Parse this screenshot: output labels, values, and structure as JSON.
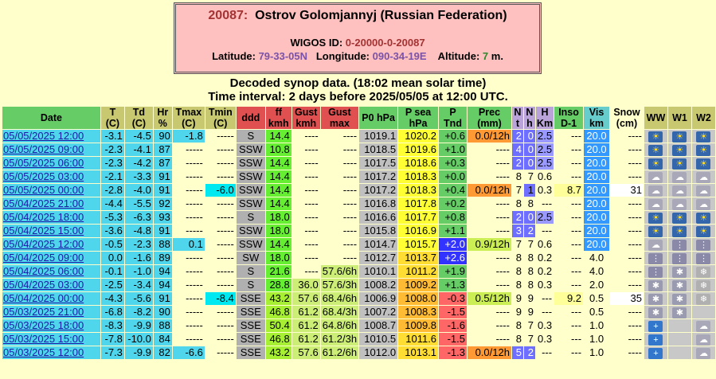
{
  "station": {
    "id": "20087:",
    "name": "Ostrov Golomjannyj (Russian Federation)",
    "wigos_label": "WIGOS ID:",
    "wigos_id": "0-20000-0-20087",
    "lat_label": "Latitude:",
    "latitude": "79-33-05N",
    "lon_label": "Longitude:",
    "longitude": "090-34-19E",
    "alt_label": "Altitude:",
    "altitude": "7",
    "alt_unit": "m."
  },
  "heading1": "Decoded synop data. (18:02 mean solar time)",
  "heading2": "Time interval: 2 days before 2025/05/05 at 12:00 UTC.",
  "columns": [
    {
      "label": "Date",
      "bg": "#66cc66"
    },
    {
      "label": "T (C)",
      "bg": "#c8c870"
    },
    {
      "label": "Td (C)",
      "bg": "#c8c870"
    },
    {
      "label": "Hr %",
      "bg": "#c8c870"
    },
    {
      "label": "Tmax (C)",
      "bg": "#c8c870"
    },
    {
      "label": "Tmin (C)",
      "bg": "#c8c870"
    },
    {
      "label": "ddd",
      "bg": "#e05050"
    },
    {
      "label": "ff kmh",
      "bg": "#e05050"
    },
    {
      "label": "Gust kmh",
      "bg": "#e05050"
    },
    {
      "label": "Gust max",
      "bg": "#e05050"
    },
    {
      "label": "P0 hPa",
      "bg": "#66cc66"
    },
    {
      "label": "P sea hPa",
      "bg": "#66cc66"
    },
    {
      "label": "P Tnd",
      "bg": "#66cc66"
    },
    {
      "label": "Prec (mm)",
      "bg": "#66cc66"
    },
    {
      "label": "N t",
      "bg": "#b9a3d9"
    },
    {
      "label": "N h",
      "bg": "#b9a3d9"
    },
    {
      "label": "H Km",
      "bg": "#b9a3d9"
    },
    {
      "label": "Inso D-1",
      "bg": "#66cc66"
    },
    {
      "label": "Vis km",
      "bg": "#66cccc"
    },
    {
      "label": "Snow (cm)",
      "bg": "#ffffcc"
    },
    {
      "label": "WW",
      "bg": "#c8c870"
    },
    {
      "label": "W1",
      "bg": "#c8c870"
    },
    {
      "label": "W2",
      "bg": "#c8c870"
    }
  ],
  "colors": {
    "date_bg": "#4fd6ec",
    "temp_bg": "#4fd6ec",
    "tmax_bg": "#4fd6ec",
    "tmin_bg": "#00e8f0",
    "ddd_bg": "#b0b0b0",
    "ff_bg": "#66ee33",
    "ff_bg_strong": "#a6ef33",
    "gust_bg": "#ccee77",
    "gustmax_bg": "#ccee77",
    "p0_bg": "#c0c0c0",
    "psea_high": "#ffff33",
    "psea_mid": "#ffdd33",
    "psea_low": "#ffbb33",
    "tnd_pos": "#66cc66",
    "tnd_neg": "#ff6666",
    "tnd_big": "#3333ff",
    "prec_bg": "#ff9933",
    "prec_light": "#ccee55",
    "cloud_bg": "#6f6fff",
    "cloud_light": "#a0a0ff",
    "h_bg": "#9999ff",
    "inso_bg": "#ffff99",
    "vis_bg": "#3399ff",
    "snow_bg": "#ffffff",
    "icon_sun": "#3366aa",
    "icon_cloud": "#9999aa",
    "icon_snow": "#8899bb",
    "icon_blue": "#3377cc",
    "icon_gray": "#777777"
  },
  "rows": [
    {
      "date": "05/05/2025 12:00",
      "t": "-3.1",
      "td": "-4.5",
      "hr": "90",
      "tmax": "-1.8",
      "tmin": "-----",
      "ddd": "S",
      "ff": "14.4",
      "gust": "----",
      "gustmax": "----",
      "p0": "1019.1",
      "psea": "1020.2",
      "tnd": "+0.6",
      "prec": "0.0/12h",
      "nt": "2",
      "nh": "0",
      "h": "2.5",
      "inso": "---",
      "vis": "20.0",
      "snow": "----",
      "ww": "icon_sun",
      "w1": "icon_sun",
      "w2": "icon_sun"
    },
    {
      "date": "05/05/2025 09:00",
      "t": "-2.3",
      "td": "-4.1",
      "hr": "87",
      "tmax": "-----",
      "tmin": "-----",
      "ddd": "SSW",
      "ff": "10.8",
      "gust": "----",
      "gustmax": "----",
      "p0": "1018.5",
      "psea": "1019.6",
      "tnd": "+1.0",
      "prec": "----",
      "nt": "4",
      "nh": "0",
      "h": "2.5",
      "inso": "---",
      "vis": "20.0",
      "snow": "----",
      "ww": "icon_sun",
      "w1": "icon_sun",
      "w2": "icon_sun"
    },
    {
      "date": "05/05/2025 06:00",
      "t": "-2.3",
      "td": "-4.2",
      "hr": "87",
      "tmax": "-----",
      "tmin": "-----",
      "ddd": "SSW",
      "ff": "14.4",
      "gust": "----",
      "gustmax": "----",
      "p0": "1017.5",
      "psea": "1018.6",
      "tnd": "+0.3",
      "prec": "----",
      "nt": "2",
      "nh": "0",
      "h": "2.5",
      "inso": "---",
      "vis": "20.0",
      "snow": "----",
      "ww": "icon_sun",
      "w1": "icon_sun",
      "w2": "icon_sun"
    },
    {
      "date": "05/05/2025 03:00",
      "t": "-2.1",
      "td": "-3.3",
      "hr": "91",
      "tmax": "-----",
      "tmin": "-----",
      "ddd": "SSW",
      "ff": "14.4",
      "gust": "----",
      "gustmax": "----",
      "p0": "1017.2",
      "psea": "1018.3",
      "tnd": "+0.0",
      "prec": "----",
      "nt": "8",
      "nh": "7",
      "h": "0.6",
      "inso": "---",
      "vis": "20.0",
      "snow": "----",
      "ww": "icon_cloud",
      "w1": "icon_cloud",
      "w2": "icon_cloud"
    },
    {
      "date": "05/05/2025 00:00",
      "t": "-2.8",
      "td": "-4.0",
      "hr": "91",
      "tmax": "-----",
      "tmin": "-6.0",
      "ddd": "SSW",
      "ff": "14.4",
      "gust": "----",
      "gustmax": "----",
      "p0": "1017.2",
      "psea": "1018.3",
      "tnd": "+0.4",
      "prec": "0.0/12h",
      "nt": "7",
      "nh": "1",
      "h": "0.3",
      "inso": "8.7",
      "vis": "20.0",
      "snow": "31",
      "ww": "icon_cloud",
      "w1": "icon_cloud",
      "w2": "icon_cloud"
    },
    {
      "date": "05/04/2025 21:00",
      "t": "-4.4",
      "td": "-5.5",
      "hr": "92",
      "tmax": "-----",
      "tmin": "-----",
      "ddd": "SSW",
      "ff": "14.4",
      "gust": "----",
      "gustmax": "----",
      "p0": "1016.8",
      "psea": "1017.8",
      "tnd": "+0.2",
      "prec": "----",
      "nt": "8",
      "nh": "8",
      "h": "---",
      "inso": "---",
      "vis": "20.0",
      "snow": "----",
      "ww": "icon_cloud",
      "w1": "icon_cloud",
      "w2": "icon_cloud"
    },
    {
      "date": "05/04/2025 18:00",
      "t": "-5.3",
      "td": "-6.3",
      "hr": "93",
      "tmax": "-----",
      "tmin": "-----",
      "ddd": "S",
      "ff": "18.0",
      "gust": "----",
      "gustmax": "----",
      "p0": "1016.6",
      "psea": "1017.7",
      "tnd": "+0.8",
      "prec": "----",
      "nt": "2",
      "nh": "0",
      "h": "2.5",
      "inso": "---",
      "vis": "20.0",
      "snow": "----",
      "ww": "icon_sun",
      "w1": "icon_sun",
      "w2": "icon_sun"
    },
    {
      "date": "05/04/2025 15:00",
      "t": "-3.6",
      "td": "-4.8",
      "hr": "91",
      "tmax": "-----",
      "tmin": "-----",
      "ddd": "SSW",
      "ff": "18.0",
      "gust": "----",
      "gustmax": "----",
      "p0": "1015.8",
      "psea": "1016.9",
      "tnd": "+1.1",
      "prec": "----",
      "nt": "3",
      "nh": "2",
      "h": "---",
      "inso": "---",
      "vis": "20.0",
      "snow": "----",
      "ww": "icon_sun",
      "w1": "icon_sun",
      "w2": "icon_sun"
    },
    {
      "date": "05/04/2025 12:00",
      "t": "-0.5",
      "td": "-2.3",
      "hr": "88",
      "tmax": "0.1",
      "tmin": "-----",
      "ddd": "SSW",
      "ff": "14.4",
      "gust": "----",
      "gustmax": "----",
      "p0": "1014.7",
      "psea": "1015.7",
      "tnd": "+2.0",
      "prec": "0.9/12h",
      "nt": "7",
      "nh": "7",
      "h": "0.6",
      "inso": "---",
      "vis": "20.0",
      "snow": "----",
      "ww": "icon_cloud",
      "w1": "icon_rain",
      "w2": "icon_rain"
    },
    {
      "date": "05/04/2025 09:00",
      "t": "0.0",
      "td": "-1.6",
      "hr": "89",
      "tmax": "-----",
      "tmin": "-----",
      "ddd": "SW",
      "ff": "18.0",
      "gust": "----",
      "gustmax": "----",
      "p0": "1012.7",
      "psea": "1013.7",
      "tnd": "+2.6",
      "prec": "----",
      "nt": "8",
      "nh": "8",
      "h": "0.2",
      "inso": "---",
      "vis": "4.0",
      "snow": "----",
      "ww": "icon_rain",
      "w1": "icon_rain",
      "w2": "icon_rain"
    },
    {
      "date": "05/04/2025 06:00",
      "t": "-0.1",
      "td": "-1.0",
      "hr": "94",
      "tmax": "-----",
      "tmin": "-----",
      "ddd": "S",
      "ff": "21.6",
      "gust": "----",
      "gustmax": "57.6/6h",
      "p0": "1010.1",
      "psea": "1011.2",
      "tnd": "+1.9",
      "prec": "----",
      "nt": "8",
      "nh": "8",
      "h": "0.2",
      "inso": "---",
      "vis": "4.0",
      "snow": "----",
      "ww": "icon_rain",
      "w1": "icon_snow",
      "w2": "icon_snowflake"
    },
    {
      "date": "05/04/2025 03:00",
      "t": "-2.5",
      "td": "-3.4",
      "hr": "94",
      "tmax": "-----",
      "tmin": "-----",
      "ddd": "S",
      "ff": "28.8",
      "gust": "36.0",
      "gustmax": "57.6/3h",
      "p0": "1008.2",
      "psea": "1009.2",
      "tnd": "+1.3",
      "prec": "----",
      "nt": "8",
      "nh": "8",
      "h": "0.3",
      "inso": "---",
      "vis": "2.0",
      "snow": "----",
      "ww": "icon_snow",
      "w1": "icon_snow",
      "w2": "icon_snowflake"
    },
    {
      "date": "05/04/2025 00:00",
      "t": "-4.3",
      "td": "-5.6",
      "hr": "91",
      "tmax": "-----",
      "tmin": "-8.4",
      "ddd": "SSE",
      "ff": "43.2",
      "gust": "57.6",
      "gustmax": "68.4/6h",
      "p0": "1006.9",
      "psea": "1008.0",
      "tnd": "-0.3",
      "prec": "0.5/12h",
      "nt": "9",
      "nh": "9",
      "h": "---",
      "inso": "9.2",
      "vis": "0.5",
      "snow": "35",
      "ww": "icon_snow",
      "w1": "icon_snow",
      "w2": "icon_snowflake"
    },
    {
      "date": "05/03/2025 21:00",
      "t": "-6.8",
      "td": "-8.2",
      "hr": "90",
      "tmax": "-----",
      "tmin": "-----",
      "ddd": "SSE",
      "ff": "46.8",
      "gust": "61.2",
      "gustmax": "68.4/3h",
      "p0": "1007.2",
      "psea": "1008.3",
      "tnd": "-1.5",
      "prec": "----",
      "nt": "9",
      "nh": "9",
      "h": "---",
      "inso": "---",
      "vis": "0.5",
      "snow": "----",
      "ww": "icon_snow",
      "w1": "icon_snow",
      "w2": "icon_none"
    },
    {
      "date": "05/03/2025 18:00",
      "t": "-8.3",
      "td": "-9.9",
      "hr": "88",
      "tmax": "-----",
      "tmin": "-----",
      "ddd": "SSE",
      "ff": "50.4",
      "gust": "61.2",
      "gustmax": "64.8/6h",
      "p0": "1008.7",
      "psea": "1009.8",
      "tnd": "-1.6",
      "prec": "----",
      "nt": "8",
      "nh": "7",
      "h": "0.3",
      "inso": "---",
      "vis": "1.0",
      "snow": "----",
      "ww": "icon_blue",
      "w1": "icon_none",
      "w2": "icon_cloud"
    },
    {
      "date": "05/03/2025 15:00",
      "t": "-7.8",
      "td": "-10.0",
      "hr": "84",
      "tmax": "-----",
      "tmin": "-----",
      "ddd": "SSE",
      "ff": "46.8",
      "gust": "61.2",
      "gustmax": "61.2/3h",
      "p0": "1010.5",
      "psea": "1011.6",
      "tnd": "-1.5",
      "prec": "----",
      "nt": "8",
      "nh": "7",
      "h": "0.3",
      "inso": "---",
      "vis": "1.0",
      "snow": "----",
      "ww": "icon_blue",
      "w1": "icon_none",
      "w2": "icon_cloud"
    },
    {
      "date": "05/03/2025 12:00",
      "t": "-7.3",
      "td": "-9.9",
      "hr": "82",
      "tmax": "-6.6",
      "tmin": "-----",
      "ddd": "SSE",
      "ff": "43.2",
      "gust": "57.6",
      "gustmax": "61.2/6h",
      "p0": "1012.0",
      "psea": "1013.1",
      "tnd": "-1.3",
      "prec": "0.0/12h",
      "nt": "5",
      "nh": "2",
      "h": "---",
      "inso": "---",
      "vis": "1.0",
      "snow": "----",
      "ww": "icon_blue",
      "w1": "icon_none",
      "w2": "icon_cloud"
    }
  ]
}
